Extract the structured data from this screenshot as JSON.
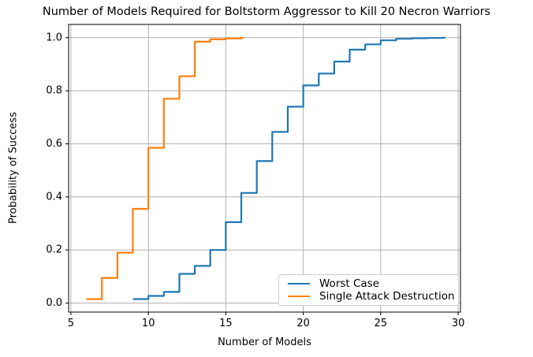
{
  "chart_data": {
    "type": "line",
    "subtype": "step-post",
    "title": "Number of Models Required for Boltstorm Aggressor to Kill 20 Necron Warriors",
    "xlabel": "Number of Models",
    "ylabel": "Probability of Success",
    "xlim": [
      4.85,
      30.15
    ],
    "ylim": [
      -0.034,
      1.05
    ],
    "grid": true,
    "grid_color": "#b0b0b0",
    "axis_color": "#000000",
    "background": "#ffffff",
    "xticks": {
      "values": [
        5,
        10,
        15,
        20,
        25,
        30
      ],
      "labels": [
        "5",
        "10",
        "15",
        "20",
        "25",
        "30"
      ]
    },
    "yticks": {
      "values": [
        0.0,
        0.2,
        0.4,
        0.6,
        0.8,
        1.0
      ],
      "labels": [
        "0.0",
        "0.2",
        "0.4",
        "0.6",
        "0.8",
        "1.0"
      ]
    },
    "legend": {
      "position": "lower right",
      "border_color": "#cccccc",
      "items": [
        "Worst Case",
        "Single Attack Destruction"
      ]
    },
    "series": [
      {
        "name": "Worst Case",
        "color": "#1f77b4",
        "x": [
          9,
          10,
          11,
          12,
          13,
          14,
          15,
          16,
          17,
          18,
          19,
          20,
          21,
          22,
          23,
          24,
          25,
          26,
          27,
          28,
          29
        ],
        "y": [
          0.015,
          0.027,
          0.042,
          0.11,
          0.14,
          0.2,
          0.305,
          0.415,
          0.535,
          0.645,
          0.74,
          0.82,
          0.865,
          0.91,
          0.955,
          0.975,
          0.99,
          0.996,
          0.998,
          0.999,
          1.0
        ]
      },
      {
        "name": "Single Attack Destruction",
        "color": "#ff7f0e",
        "x": [
          6,
          7,
          8,
          9,
          10,
          11,
          12,
          13,
          14,
          15,
          16
        ],
        "y": [
          0.015,
          0.095,
          0.19,
          0.355,
          0.585,
          0.77,
          0.855,
          0.985,
          0.994,
          0.997,
          1.0
        ]
      }
    ]
  }
}
